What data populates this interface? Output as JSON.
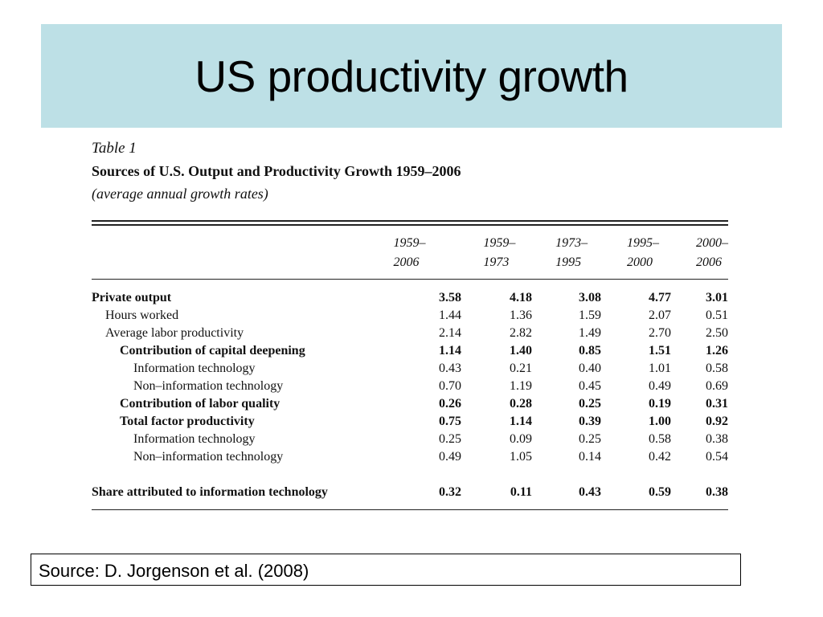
{
  "slide_title": "US productivity growth",
  "table": {
    "caption": "Table 1",
    "heading": "Sources of U.S. Output and Productivity Growth 1959–2006",
    "subheading": "(average annual growth rates)",
    "columns": [
      {
        "line1": "1959–",
        "line2": "2006"
      },
      {
        "line1": "1959–",
        "line2": "1973"
      },
      {
        "line1": "1973–",
        "line2": "1995"
      },
      {
        "line1": "1995–",
        "line2": "2000"
      },
      {
        "line1": "2000–",
        "line2": "2006"
      }
    ],
    "rows": [
      {
        "label": "Private output",
        "values": [
          "3.58",
          "4.18",
          "3.08",
          "4.77",
          "3.01"
        ]
      },
      {
        "label": "Hours worked",
        "values": [
          "1.44",
          "1.36",
          "1.59",
          "2.07",
          "0.51"
        ]
      },
      {
        "label": "Average labor productivity",
        "values": [
          "2.14",
          "2.82",
          "1.49",
          "2.70",
          "2.50"
        ]
      },
      {
        "label": "Contribution of capital deepening",
        "values": [
          "1.14",
          "1.40",
          "0.85",
          "1.51",
          "1.26"
        ]
      },
      {
        "label": "Information technology",
        "values": [
          "0.43",
          "0.21",
          "0.40",
          "1.01",
          "0.58"
        ]
      },
      {
        "label": "Non–information technology",
        "values": [
          "0.70",
          "1.19",
          "0.45",
          "0.49",
          "0.69"
        ]
      },
      {
        "label": "Contribution of labor quality",
        "values": [
          "0.26",
          "0.28",
          "0.25",
          "0.19",
          "0.31"
        ]
      },
      {
        "label": "Total factor productivity",
        "values": [
          "0.75",
          "1.14",
          "0.39",
          "1.00",
          "0.92"
        ]
      },
      {
        "label": "Information technology",
        "values": [
          "0.25",
          "0.09",
          "0.25",
          "0.58",
          "0.38"
        ]
      },
      {
        "label": "Non–information technology",
        "values": [
          "0.49",
          "1.05",
          "0.14",
          "0.42",
          "0.54"
        ]
      },
      {
        "label": "Share attributed to information technology",
        "values": [
          "0.32",
          "0.11",
          "0.43",
          "0.59",
          "0.38"
        ]
      }
    ]
  },
  "source_note": "Source: D. Jorgenson et al. (2008)",
  "colors": {
    "title_band": "#bde0e6"
  }
}
